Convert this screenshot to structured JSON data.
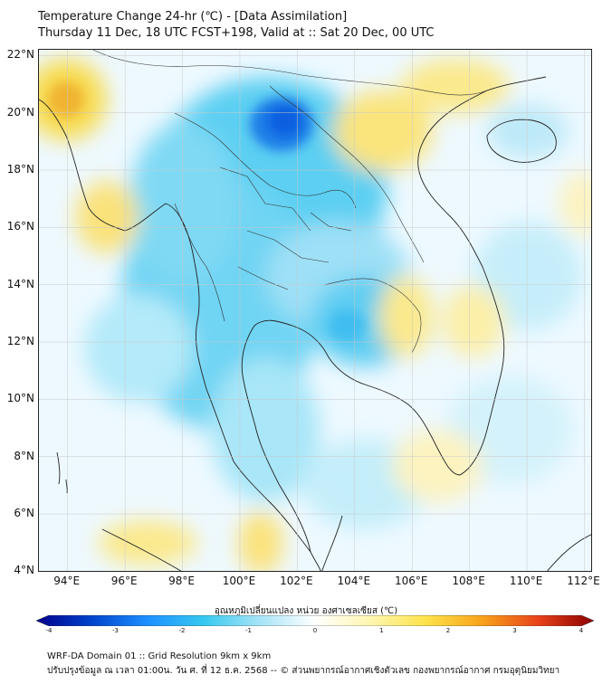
{
  "header": {
    "title_line1": "Temperature Change 24-hr (℃) - [Data Assimilation]",
    "title_line2": "Thursday 11 Dec, 18 UTC FCST+198, Valid at :: Sat 20 Dec, 00 UTC"
  },
  "map": {
    "latitudes": [
      {
        "value": 22,
        "label": "22°N"
      },
      {
        "value": 20,
        "label": "20°N"
      },
      {
        "value": 18,
        "label": "18°N"
      },
      {
        "value": 16,
        "label": "16°N"
      },
      {
        "value": 14,
        "label": "14°N"
      },
      {
        "value": 12,
        "label": "12°N"
      },
      {
        "value": 10,
        "label": "10°N"
      },
      {
        "value": 8,
        "label": "8°N"
      },
      {
        "value": 6,
        "label": "6°N"
      },
      {
        "value": 4,
        "label": "4°N"
      }
    ],
    "longitudes": [
      {
        "value": 94,
        "label": "94°E"
      },
      {
        "value": 96,
        "label": "96°E"
      },
      {
        "value": 98,
        "label": "98°E"
      },
      {
        "value": 100,
        "label": "100°E"
      },
      {
        "value": 102,
        "label": "102°E"
      },
      {
        "value": 104,
        "label": "104°E"
      },
      {
        "value": 106,
        "label": "106°E"
      },
      {
        "value": 108,
        "label": "108°E"
      },
      {
        "value": 110,
        "label": "110°E"
      },
      {
        "value": 112,
        "label": "112°E"
      }
    ],
    "lon_range": [
      93,
      112.3
    ],
    "lat_range": [
      3.95,
      22.2
    ],
    "field_colors": {
      "strong_cold": "#0a5fe0",
      "cold": "#39c6f0",
      "cool": "#a8e6f8",
      "neutral": "#eef9ff",
      "warm_light": "#fbf3b0",
      "warm": "#f8dc50",
      "hot": "#f0a020"
    }
  },
  "colorbar": {
    "title": "อุณหภูมิเปลี่ยนแปลง หน่วย องศาเซลเซียส (℃)",
    "ticks": [
      "-4",
      "-3",
      "-2",
      "-1",
      "0",
      "1",
      "2",
      "3",
      "4"
    ],
    "min": -4,
    "max": 4,
    "stops": [
      "#00008b",
      "#0044cc",
      "#1e90ff",
      "#35c8f0",
      "#a6e4f7",
      "#ffffff",
      "#fff6b0",
      "#fde24a",
      "#f8a21a",
      "#e8421a",
      "#8b0000"
    ]
  },
  "footer": {
    "line1": "WRF-DA Domain 01 :: Grid Resolution 9km x 9km",
    "line2": "ปรับปรุงข้อมูล ณ เวลา 01:00น. วัน ศ. ที่ 12 ธ.ค. 2568 -- © ส่วนพยากรณ์อากาศเชิงตัวเลข กองพยากรณ์อากาศ กรมอุตุนิยมวิทยา"
  }
}
